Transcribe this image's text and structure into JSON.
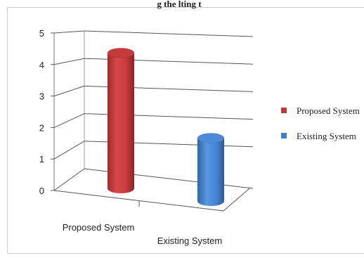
{
  "chart_data": {
    "type": "bar",
    "title": "",
    "clipped_caption": "g the lting t",
    "categories": [
      "Proposed System",
      "Existing System"
    ],
    "series": [
      {
        "name": "Proposed System",
        "values": [
          4.3,
          null
        ],
        "color": "#c0393a"
      },
      {
        "name": "Existing System",
        "values": [
          null,
          2.0
        ],
        "color": "#3f7fce"
      }
    ],
    "ylim": [
      0,
      5
    ],
    "yticks": [
      0,
      1,
      2,
      3,
      4,
      5
    ],
    "grid": true,
    "legend": "right",
    "style": "3d-cylinder"
  }
}
